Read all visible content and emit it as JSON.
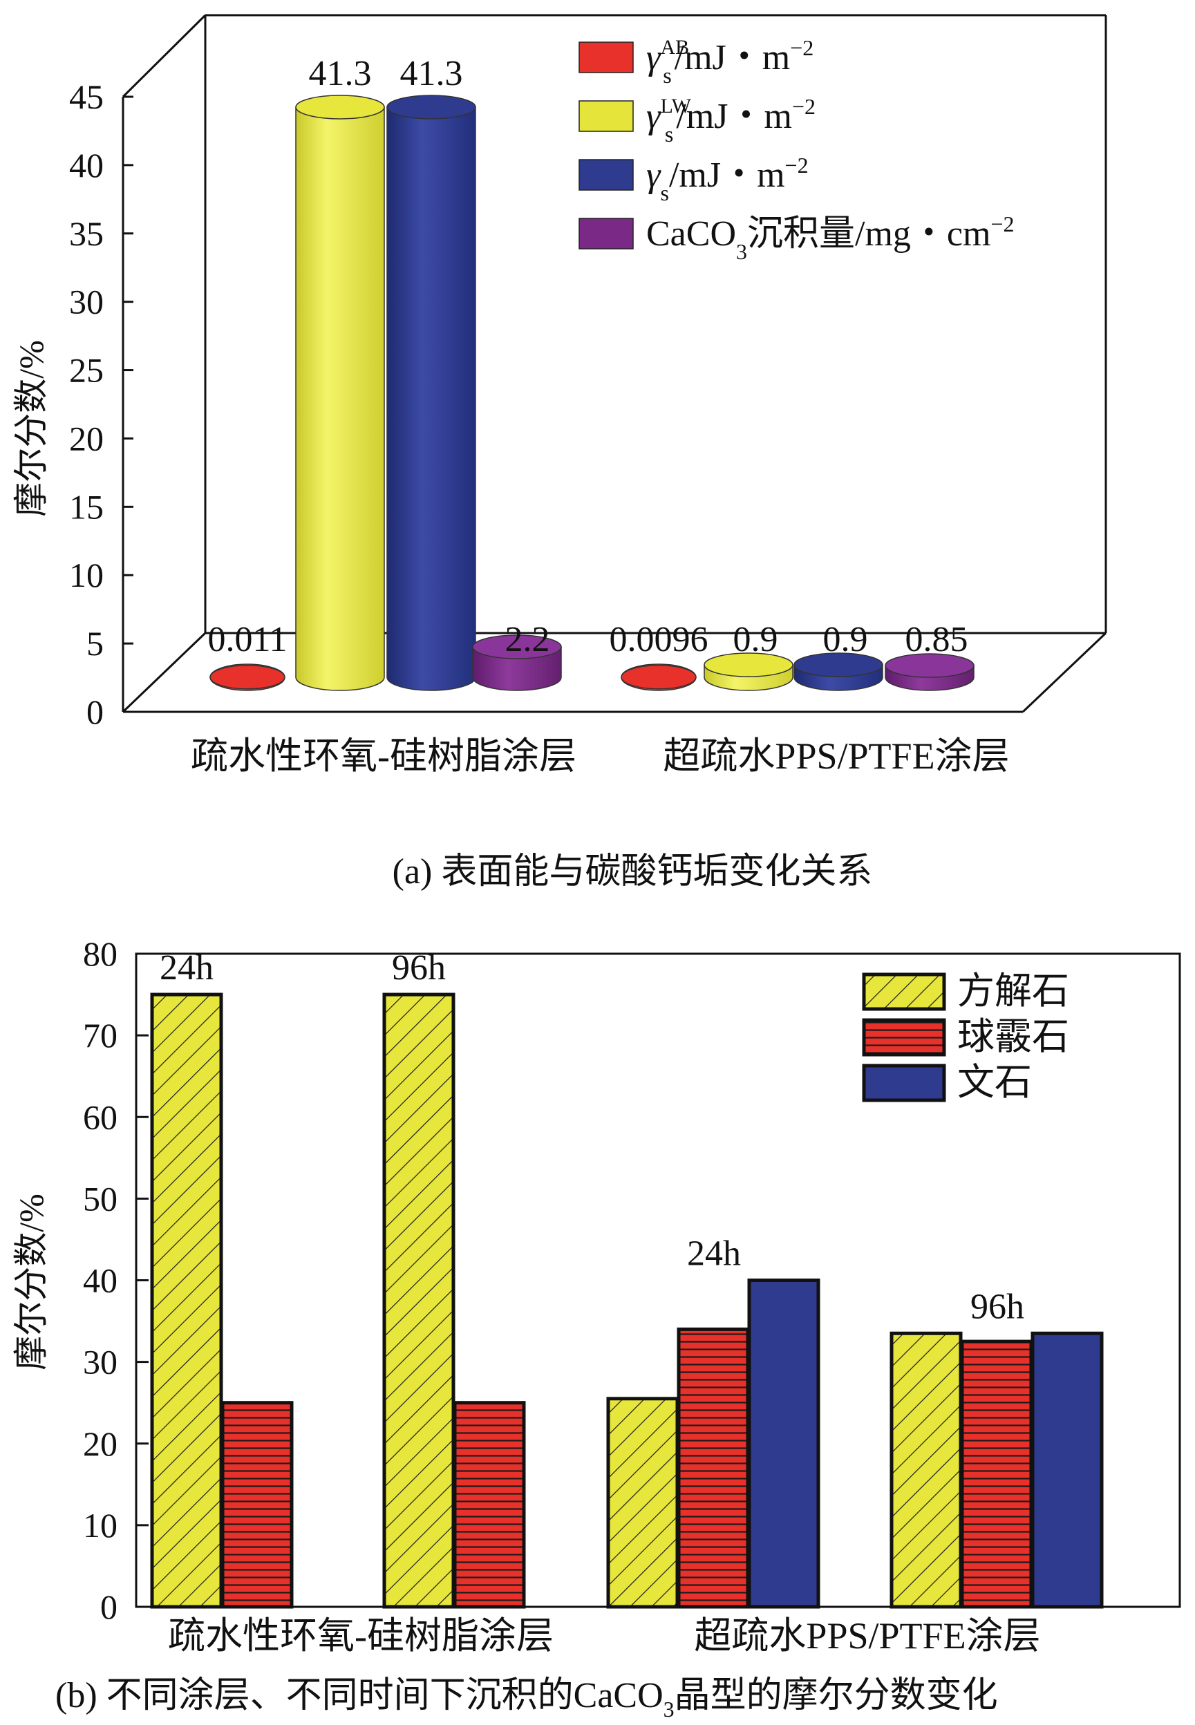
{
  "chart_data": [
    {
      "type": "bar",
      "title": "",
      "caption": "(a) 表面能与碳酸钙垢变化关系",
      "ylabel": "摩尔分数/%",
      "ylim": [
        0,
        45
      ],
      "yticks": [
        0,
        5,
        10,
        15,
        20,
        25,
        30,
        35,
        40,
        45
      ],
      "categories": [
        "疏水性环氧-硅树脂涂层",
        "超疏水PPS/PTFE涂层"
      ],
      "series": [
        {
          "name": "γsAB/mJ・m−2",
          "values": [
            0.011,
            0.0096
          ],
          "labels": [
            "0.011",
            "0.0096"
          ],
          "color": "#e8312a"
        },
        {
          "name": "γsLW/mJ・m−2",
          "values": [
            41.3,
            0.9
          ],
          "labels": [
            "41.3",
            "0.9"
          ],
          "color": "#e4e43a"
        },
        {
          "name": "γs/mJ・m−2",
          "values": [
            41.3,
            0.9
          ],
          "labels": [
            "41.3",
            "0.9"
          ],
          "color": "#2e3b8f"
        },
        {
          "name": "CaCO3沉积量/mg・cm−2",
          "values": [
            2.2,
            0.85
          ],
          "labels": [
            "2.2",
            "0.85"
          ],
          "color": "#7a2a86"
        }
      ],
      "legend": [
        {
          "base": "γ",
          "sub": "s",
          "sup": "AB",
          "unit": "/mJ・m",
          "exp": "−2",
          "color": "#e8312a"
        },
        {
          "base": "γ",
          "sub": "s",
          "sup": "LW",
          "unit": "/mJ・m",
          "exp": "−2",
          "color": "#e4e43a"
        },
        {
          "base": "γ",
          "sub": "s",
          "sup": "",
          "unit": "/mJ・m",
          "exp": "−2",
          "color": "#2e3b8f"
        },
        {
          "base": "CaCO",
          "sub": "3",
          "sup": "",
          "unit": "沉积量/mg・cm",
          "exp": "−2",
          "color": "#7a2a86"
        }
      ],
      "legend_position": "top-right",
      "grid": false
    },
    {
      "type": "bar",
      "title": "",
      "caption_parts": [
        "(b) 不同涂层、不同时间下沉积的CaCO",
        "3",
        "晶型的摩尔分数变化"
      ],
      "ylabel": "摩尔分数/%",
      "ylim": [
        0,
        80
      ],
      "yticks": [
        0,
        10,
        20,
        30,
        40,
        50,
        60,
        70,
        80
      ],
      "category_labels": [
        "疏水性环氧-硅树脂涂层",
        "超疏水PPS/PTFE涂层"
      ],
      "groups": [
        {
          "label": "24h",
          "values": [
            75,
            25,
            null
          ]
        },
        {
          "label": "96h",
          "values": [
            75,
            25,
            null
          ]
        },
        {
          "label": "24h",
          "values": [
            25.5,
            34,
            40
          ]
        },
        {
          "label": "96h",
          "values": [
            33.5,
            32.5,
            33.5
          ]
        }
      ],
      "series": [
        {
          "name": "方解石",
          "color": "#e6e63c",
          "pattern": "diagonal"
        },
        {
          "name": "球霰石",
          "color": "#e8312a",
          "pattern": "horizontal"
        },
        {
          "name": "文石",
          "color": "#2e3b8f",
          "pattern": "none"
        }
      ],
      "legend_position": "top-right",
      "grid": false
    }
  ]
}
